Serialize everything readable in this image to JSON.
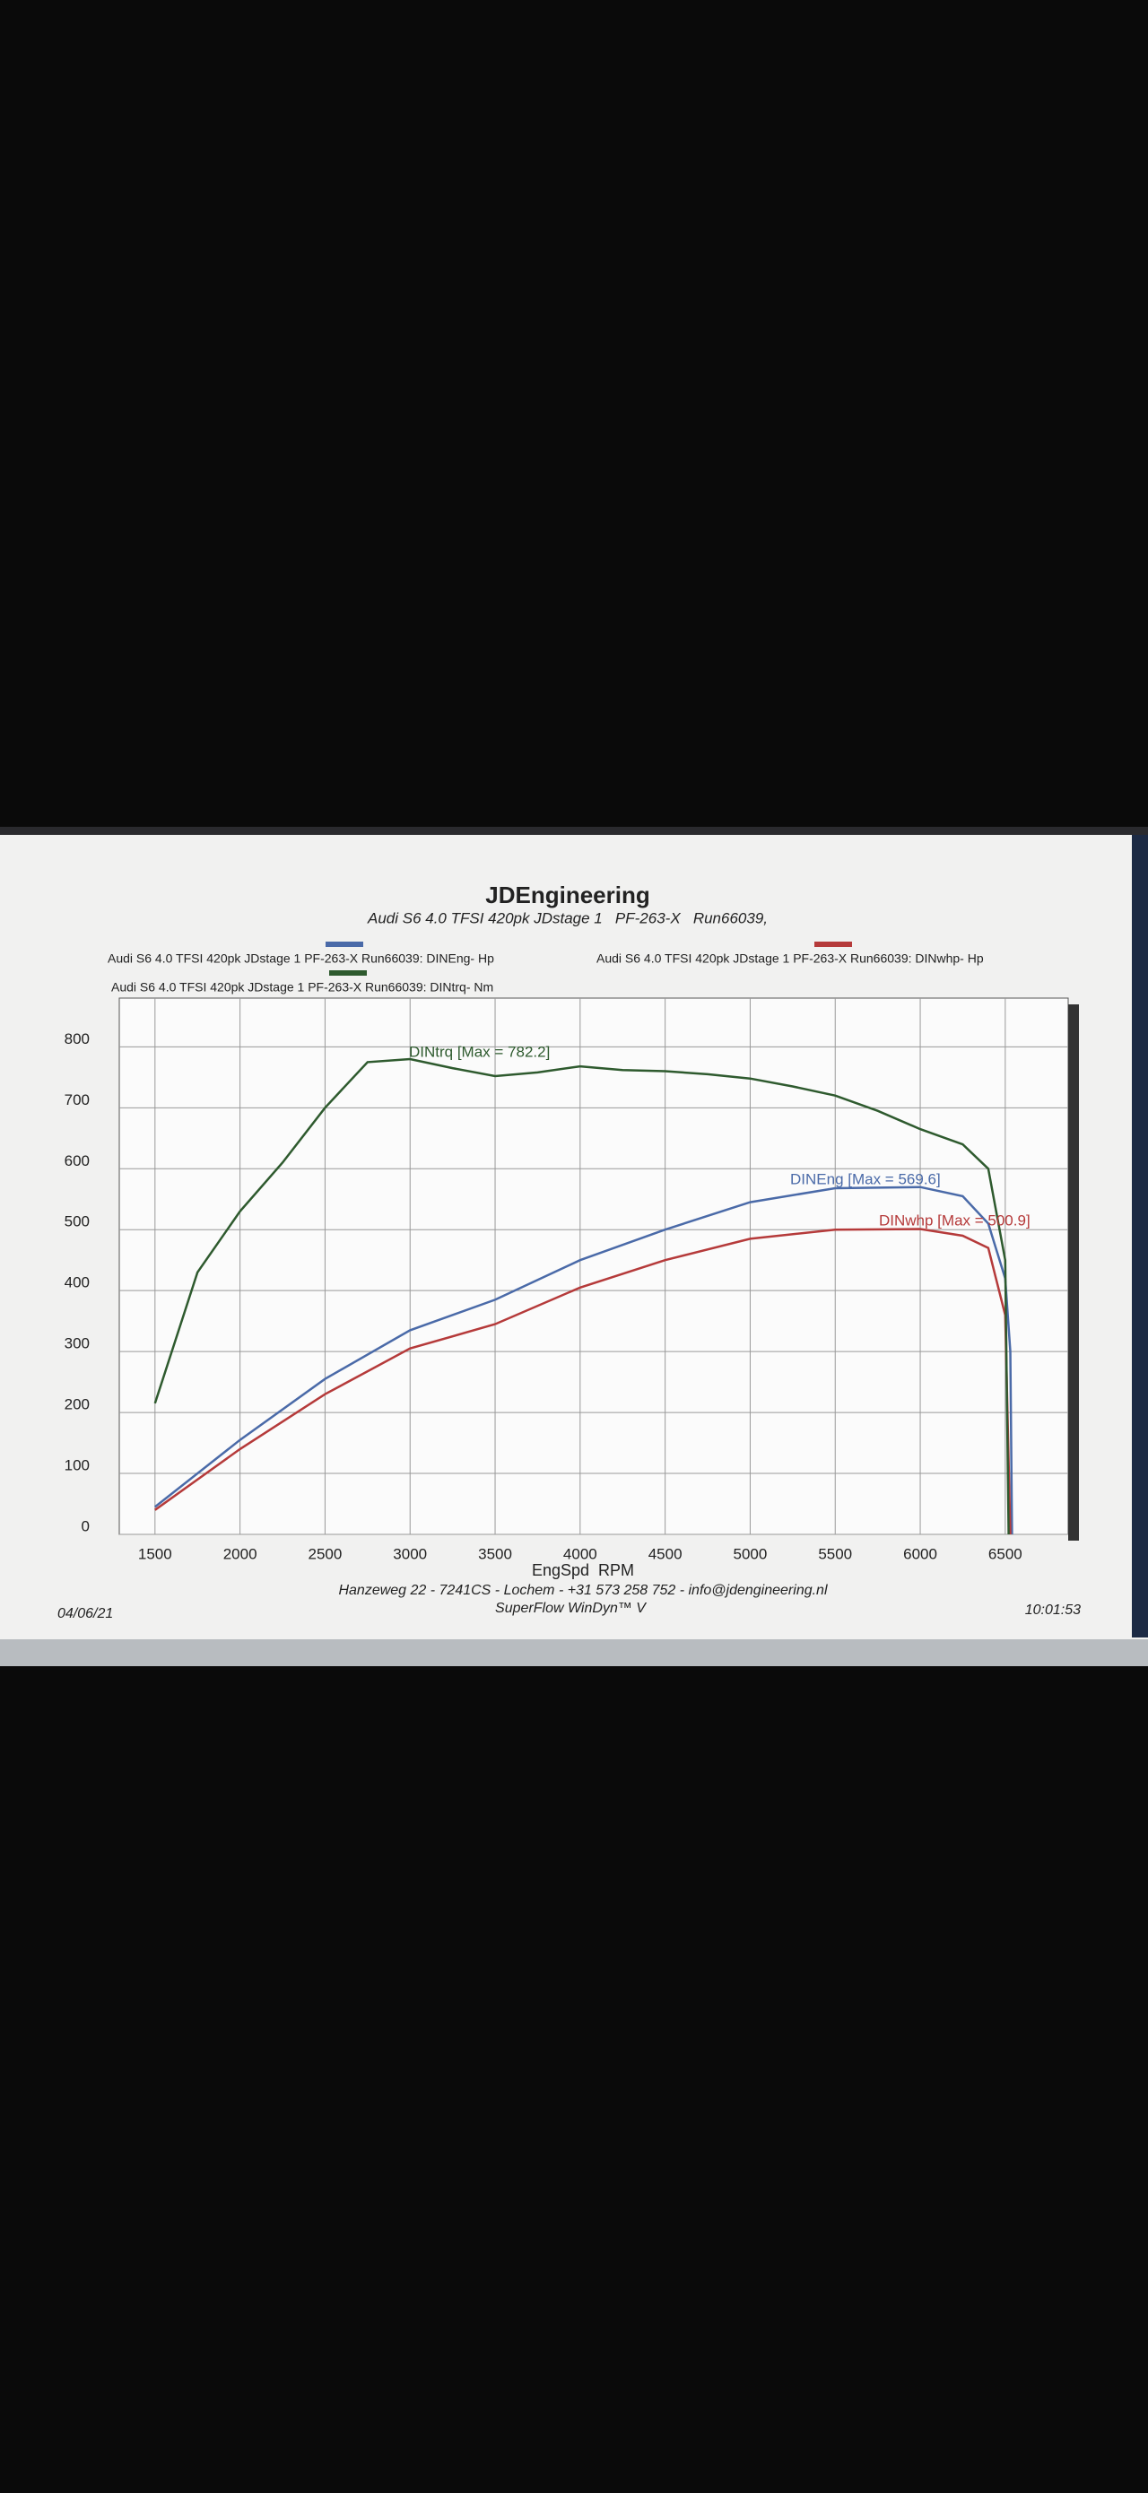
{
  "chart_data": {
    "type": "line",
    "title": "JDEngineering",
    "subtitle": "Audi S6 4.0 TFSI 420pk JDstage 1   PF-263-X   Run66039,",
    "x_label": "EngSpd  RPM",
    "xlim": [
      1290,
      6870
    ],
    "ylim": [
      0,
      880
    ],
    "xticks": [
      1500,
      2000,
      2500,
      3000,
      3500,
      4000,
      4500,
      5000,
      5500,
      6000,
      6500
    ],
    "yticks": [
      0,
      100,
      200,
      300,
      400,
      500,
      600,
      700,
      800
    ],
    "grid": true,
    "series": [
      {
        "name": "Audi S6 4.0 TFSI 420pk JDstage 1   PF-263-X   Run66039: DINEng- Hp",
        "color": "#4a6aa8",
        "x": [
          1500,
          2000,
          2500,
          3000,
          3500,
          4000,
          4500,
          5000,
          5500,
          6000,
          6250,
          6400,
          6500,
          6530,
          6540
        ],
        "values": [
          45,
          155,
          255,
          335,
          385,
          450,
          500,
          545,
          568,
          570,
          555,
          510,
          420,
          300,
          0
        ]
      },
      {
        "name": "Audi S6 4.0 TFSI 420pk JDstage 1   PF-263-X   Run66039: DINwhp- Hp",
        "color": "#b53a3a",
        "x": [
          1500,
          2000,
          2500,
          3000,
          3500,
          4000,
          4500,
          5000,
          5500,
          6000,
          6250,
          6400,
          6500,
          6530
        ],
        "values": [
          40,
          140,
          230,
          305,
          345,
          405,
          450,
          485,
          500,
          501,
          490,
          470,
          360,
          0
        ]
      },
      {
        "name": "Audi S6 4.0 TFSI 420pk JDstage 1   PF-263-X   Run66039: DINtrq- Nm",
        "color": "#2e5a2e",
        "x": [
          1500,
          1750,
          2000,
          2250,
          2500,
          2750,
          3000,
          3250,
          3500,
          3750,
          4000,
          4250,
          4500,
          4750,
          5000,
          5250,
          5500,
          5750,
          6000,
          6250,
          6400,
          6500,
          6520
        ],
        "values": [
          215,
          430,
          530,
          610,
          700,
          775,
          780,
          765,
          752,
          758,
          768,
          762,
          760,
          755,
          748,
          735,
          720,
          695,
          665,
          640,
          600,
          450,
          0
        ]
      }
    ],
    "annotations": [
      "DINtrq [Max = 782.2]",
      "DINEng [Max = 569.6]",
      "DINwhp [Max = 500.9]"
    ],
    "footer": {
      "address": "Hanzeweg 22 - 7241CS - Lochem - +31 573 258 752 - info@jdengineering.nl",
      "software": "SuperFlow WinDyn™ V",
      "date": "04/06/21",
      "time": "10:01:53"
    }
  }
}
